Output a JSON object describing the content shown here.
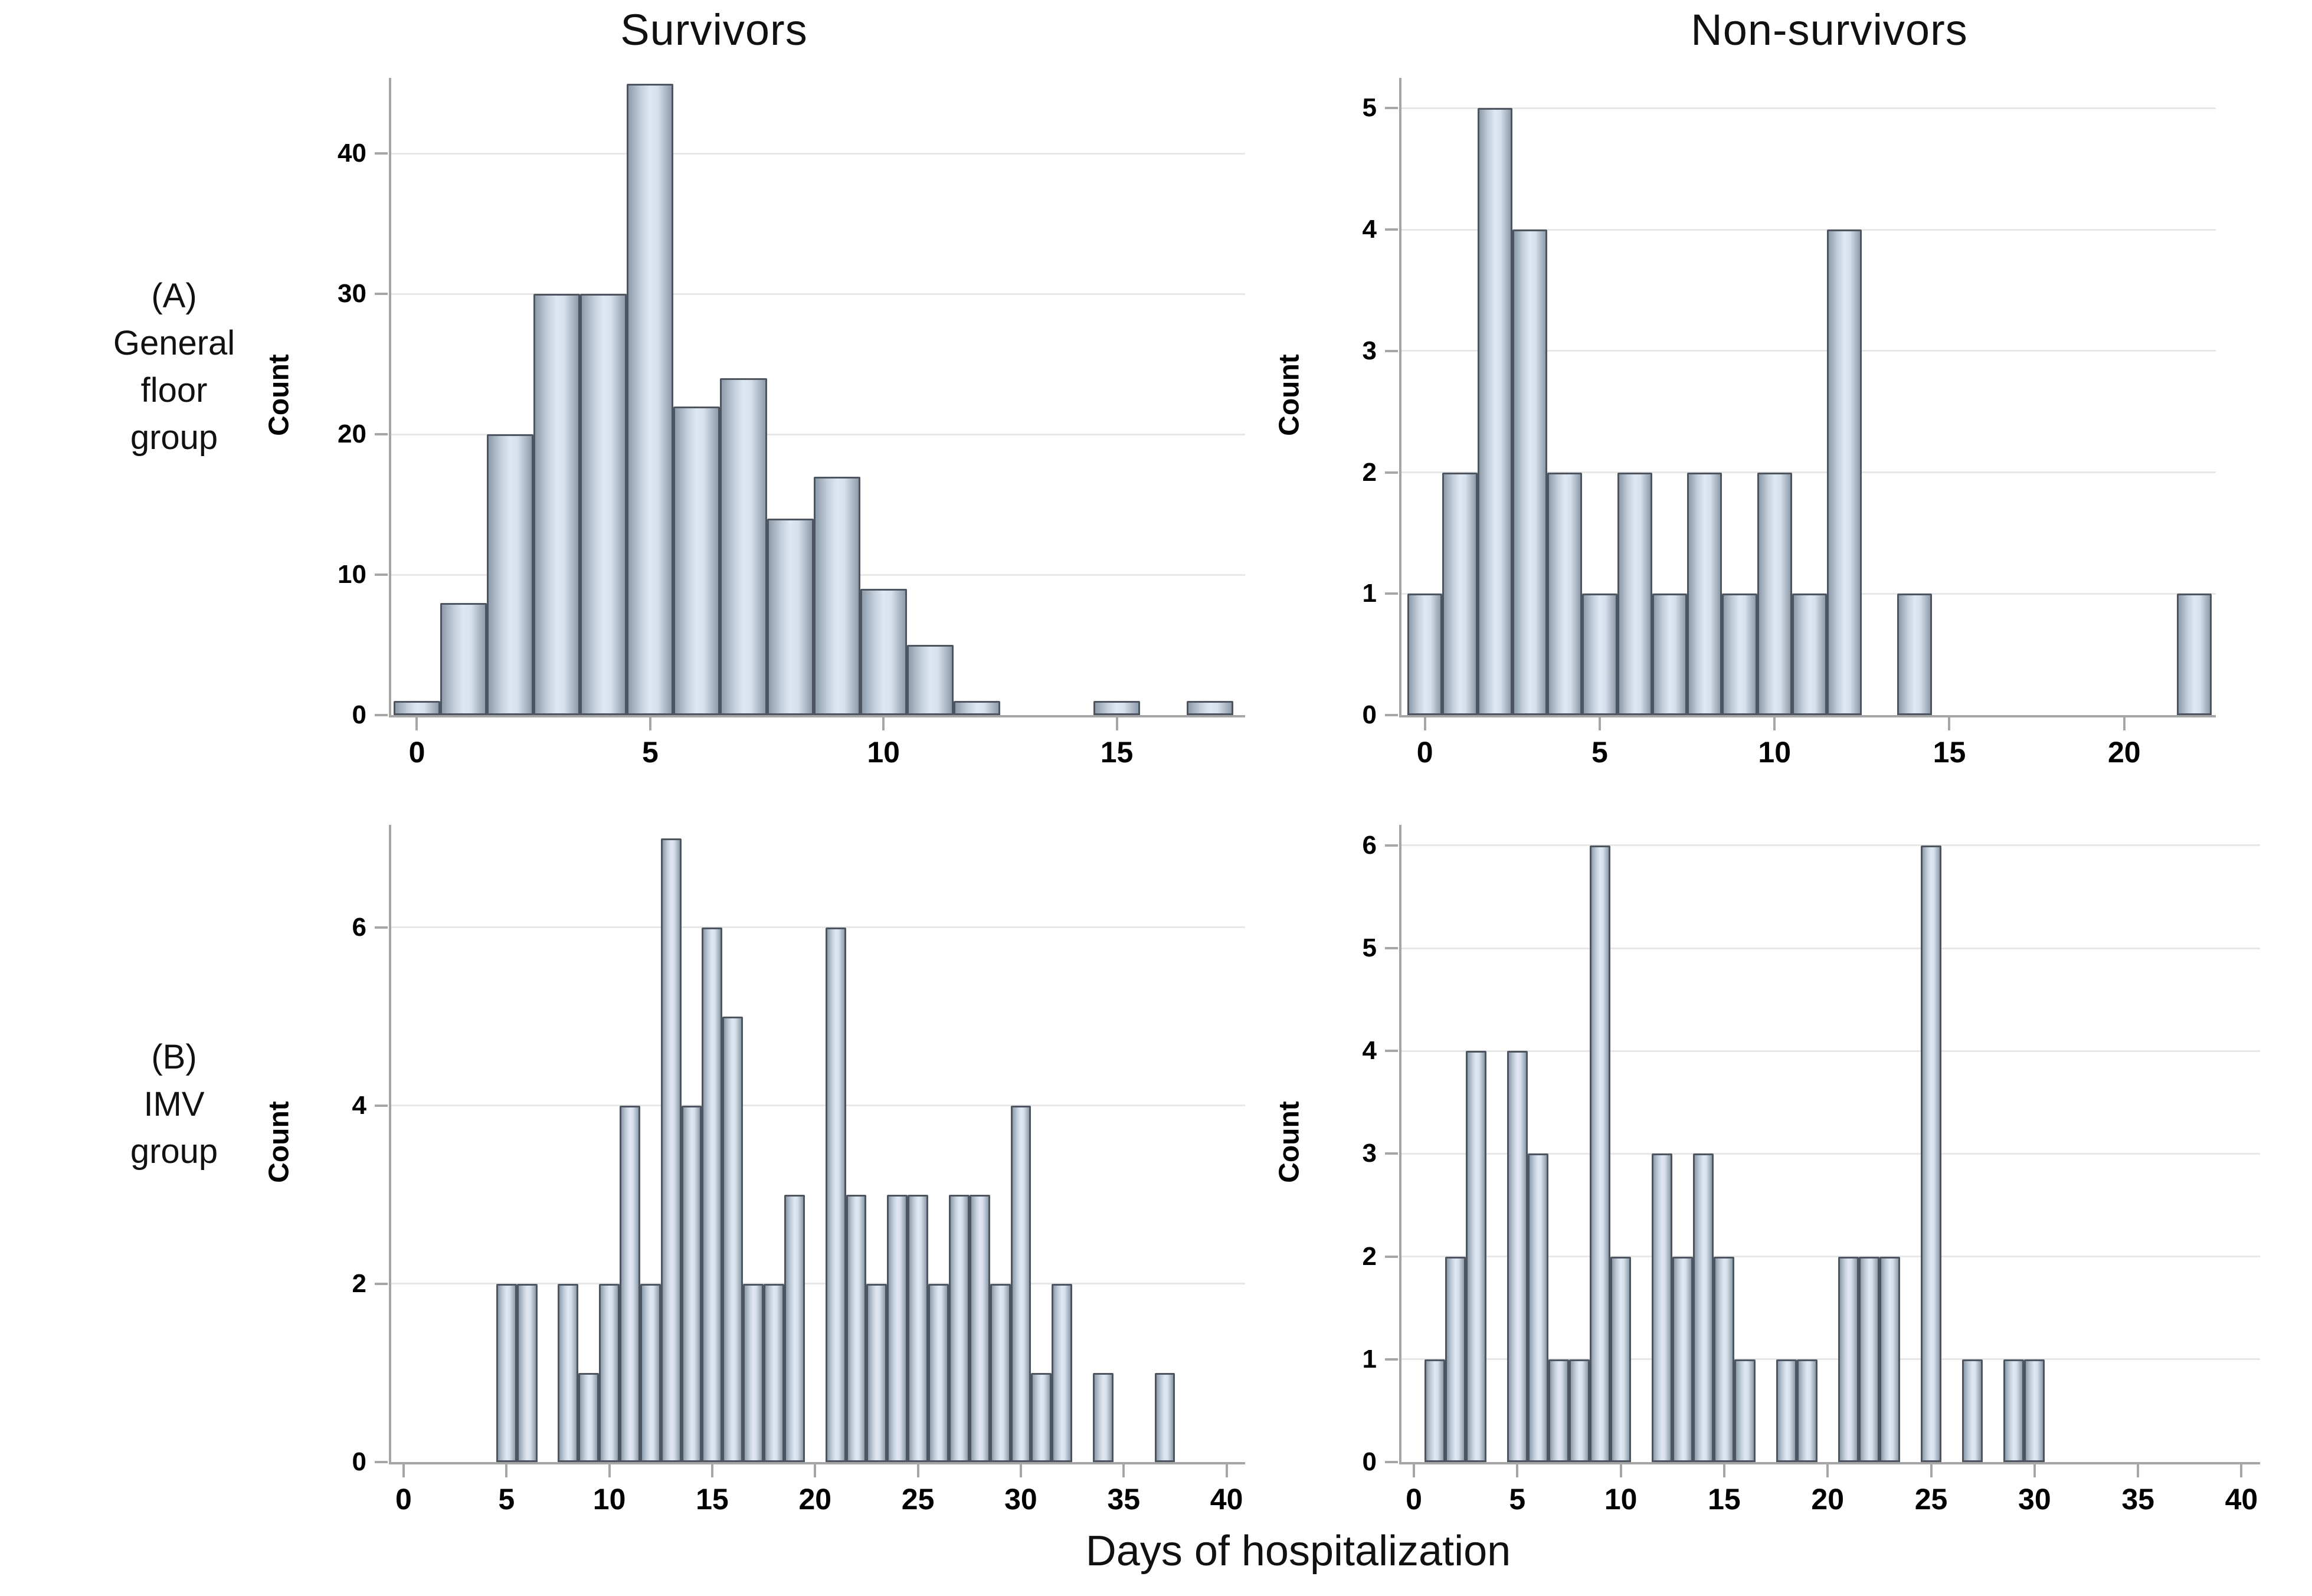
{
  "figure": {
    "column_titles": {
      "left": "Survivors",
      "right": "Non-survivors"
    },
    "row_labels": {
      "a": [
        "(A)",
        "General",
        "floor",
        "group"
      ],
      "b": [
        "(B)",
        "IMV",
        "group"
      ]
    },
    "x_axis_label": "Days of hospitalization",
    "y_axis_label": "Count"
  },
  "colors": {
    "bar_fill_edge": "#8e9cab",
    "bar_fill_center": "#dfe8f2",
    "bar_border": "#4d5560",
    "axis_line": "#a6a6a6",
    "gridline": "#e7e7e7",
    "text": "#000000"
  },
  "chart_data": [
    {
      "id": "general-floor-survivors",
      "type": "bar",
      "panel": "A",
      "group": "General floor group",
      "outcome": "Survivors",
      "title": "Survivors",
      "xlabel": "Days of hospitalization",
      "ylabel": "Count",
      "bars": [
        [
          0,
          1
        ],
        [
          1,
          8
        ],
        [
          2,
          20
        ],
        [
          3,
          30
        ],
        [
          4,
          30
        ],
        [
          5,
          45
        ],
        [
          6,
          22
        ],
        [
          7,
          24
        ],
        [
          8,
          14
        ],
        [
          9,
          17
        ],
        [
          10,
          9
        ],
        [
          11,
          5
        ],
        [
          12,
          1
        ],
        [
          15,
          1
        ],
        [
          17,
          1
        ]
      ],
      "xticks": [
        0,
        5,
        10,
        15
      ],
      "yticks": [
        0,
        10,
        20,
        30,
        40
      ],
      "xlim": [
        -0.55,
        17.75
      ],
      "ylim": [
        0,
        45.4
      ],
      "grid": true,
      "legend": "none"
    },
    {
      "id": "general-floor-nonsurvivors",
      "type": "bar",
      "panel": "A",
      "group": "General floor group",
      "outcome": "Non-survivors",
      "title": "Non-survivors",
      "xlabel": "Days of hospitalization",
      "ylabel": "Count",
      "bars": [
        [
          0,
          1
        ],
        [
          1,
          2
        ],
        [
          2,
          5
        ],
        [
          3,
          4
        ],
        [
          4,
          2
        ],
        [
          5,
          1
        ],
        [
          6,
          2
        ],
        [
          7,
          1
        ],
        [
          8,
          2
        ],
        [
          9,
          1
        ],
        [
          10,
          2
        ],
        [
          11,
          1
        ],
        [
          12,
          4
        ],
        [
          14,
          1
        ],
        [
          22,
          1
        ]
      ],
      "xticks": [
        0,
        5,
        10,
        15,
        20
      ],
      "yticks": [
        0,
        1,
        2,
        3,
        4,
        5
      ],
      "xlim": [
        -0.67,
        22.62
      ],
      "ylim": [
        0,
        5.25
      ],
      "grid": true,
      "legend": "none"
    },
    {
      "id": "imv-survivors",
      "type": "bar",
      "panel": "B",
      "group": "IMV group",
      "outcome": "Survivors",
      "title": "Survivors",
      "xlabel": "Days of hospitalization",
      "ylabel": "Count",
      "bars": [
        [
          5,
          2
        ],
        [
          6,
          2
        ],
        [
          8,
          2
        ],
        [
          9,
          1
        ],
        [
          10,
          2
        ],
        [
          11,
          4
        ],
        [
          12,
          2
        ],
        [
          13,
          7
        ],
        [
          14,
          4
        ],
        [
          15,
          6
        ],
        [
          16,
          5
        ],
        [
          17,
          2
        ],
        [
          18,
          2
        ],
        [
          19,
          3
        ],
        [
          21,
          6
        ],
        [
          22,
          3
        ],
        [
          23,
          2
        ],
        [
          24,
          3
        ],
        [
          25,
          3
        ],
        [
          26,
          2
        ],
        [
          27,
          3
        ],
        [
          28,
          3
        ],
        [
          29,
          2
        ],
        [
          30,
          4
        ],
        [
          31,
          1
        ],
        [
          32,
          2
        ],
        [
          34,
          1
        ],
        [
          37,
          1
        ]
      ],
      "xticks": [
        0,
        5,
        10,
        15,
        20,
        25,
        30,
        35,
        40
      ],
      "yticks": [
        0,
        2,
        4,
        6
      ],
      "xlim": [
        -0.6,
        40.9
      ],
      "ylim": [
        0,
        7.15
      ],
      "grid": true,
      "legend": "none"
    },
    {
      "id": "imv-nonsurvivors",
      "type": "bar",
      "panel": "B",
      "group": "IMV group",
      "outcome": "Non-survivors",
      "title": "Non-survivors",
      "xlabel": "Days of hospitalization",
      "ylabel": "Count",
      "bars": [
        [
          1,
          1
        ],
        [
          2,
          2
        ],
        [
          3,
          4
        ],
        [
          5,
          4
        ],
        [
          6,
          3
        ],
        [
          7,
          1
        ],
        [
          8,
          1
        ],
        [
          9,
          6
        ],
        [
          10,
          2
        ],
        [
          12,
          3
        ],
        [
          13,
          2
        ],
        [
          14,
          3
        ],
        [
          15,
          2
        ],
        [
          16,
          1
        ],
        [
          18,
          1
        ],
        [
          19,
          1
        ],
        [
          21,
          2
        ],
        [
          22,
          2
        ],
        [
          23,
          2
        ],
        [
          25,
          6
        ],
        [
          27,
          1
        ],
        [
          29,
          1
        ],
        [
          30,
          1
        ]
      ],
      "xticks": [
        0,
        5,
        10,
        15,
        20,
        25,
        30,
        35,
        40
      ],
      "yticks": [
        0,
        1,
        2,
        3,
        4,
        5,
        6
      ],
      "xlim": [
        -0.6,
        40.9
      ],
      "ylim": [
        0,
        6.2
      ],
      "grid": true,
      "legend": "none"
    }
  ]
}
